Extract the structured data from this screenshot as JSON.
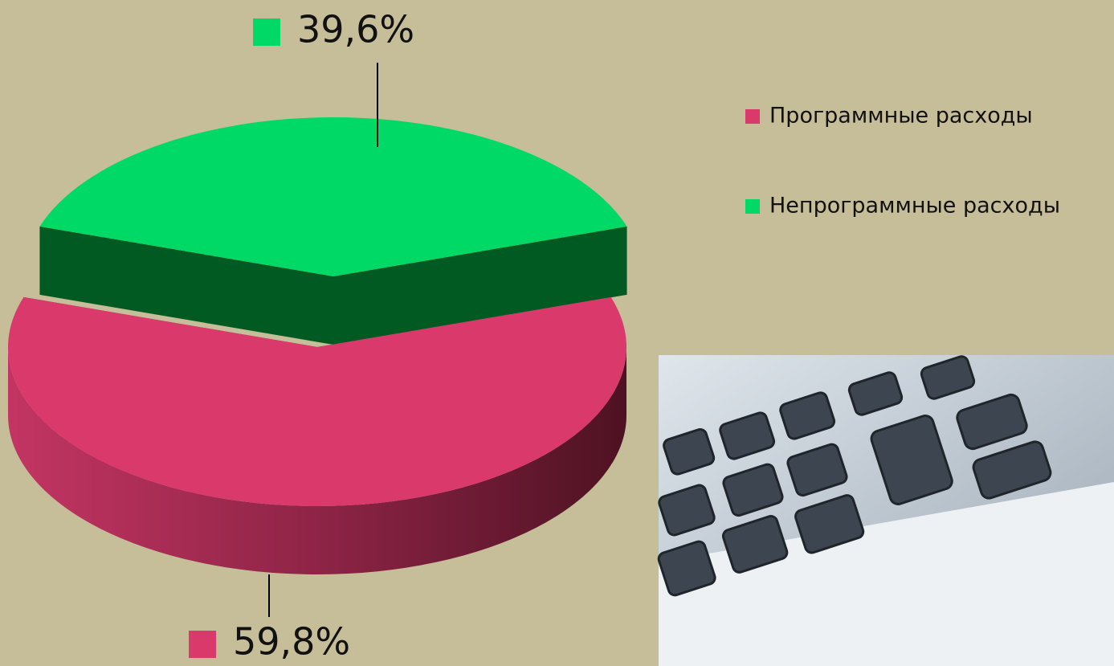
{
  "chart_data": {
    "type": "pie3d",
    "categories": [
      "Программные расходы",
      "Непрограммные расходы"
    ],
    "values": [
      59.8,
      39.6
    ],
    "value_labels": [
      "59,8%",
      "39,6%"
    ],
    "colors": [
      "#d93a6b",
      "#00d966"
    ],
    "legend": "right"
  }
}
